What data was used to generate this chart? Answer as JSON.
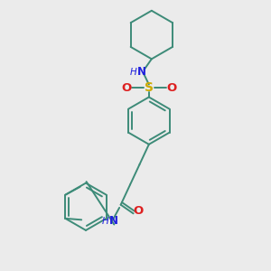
{
  "background_color": "#ebebeb",
  "bond_color": "#3d8b78",
  "N_color": "#2020dd",
  "O_color": "#dd2020",
  "S_color": "#ccaa00",
  "line_width": 1.4,
  "figsize": [
    3.0,
    3.0
  ],
  "dpi": 100,
  "xlim": [
    0,
    10
  ],
  "ylim": [
    0,
    10
  ]
}
